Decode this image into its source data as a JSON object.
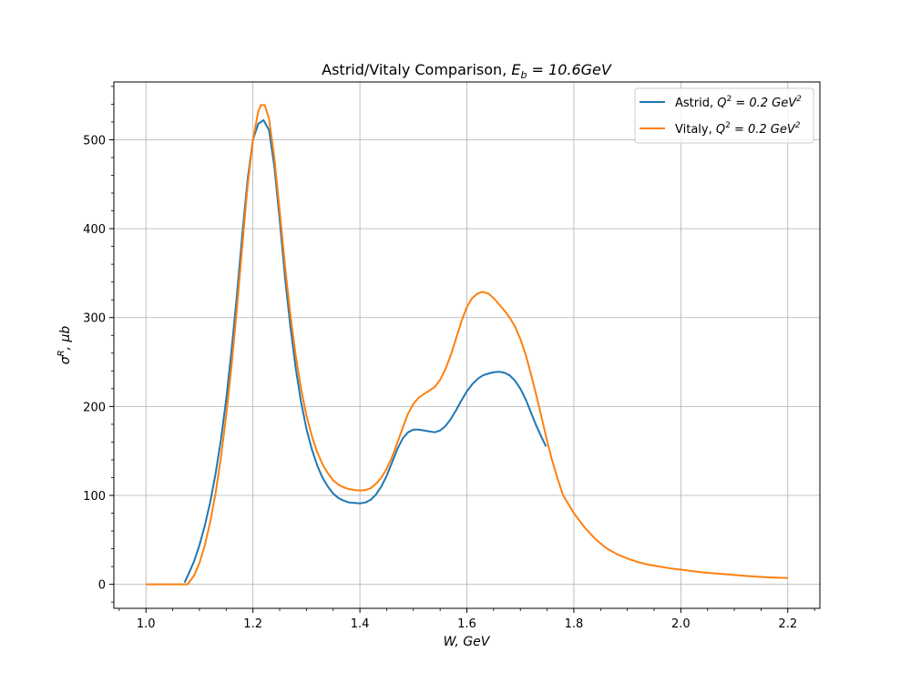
{
  "chart_data": {
    "type": "line",
    "title": "Astrid/Vitaly Comparison, E_b = 10.6GeV",
    "title_parts": {
      "prefix": "Astrid/Vitaly Comparison, ",
      "var": "E",
      "sub": "b",
      "suffix": " = 10.6GeV"
    },
    "xlabel": "W, GeV",
    "ylabel": "σ^R, μb",
    "ylabel_parts": {
      "base": "σ",
      "sup": "R",
      "rest": ", μb"
    },
    "xlim": [
      0.94,
      2.26
    ],
    "ylim": [
      -27,
      565
    ],
    "xticks": [
      1.0,
      1.2,
      1.4,
      1.6,
      1.8,
      2.0,
      2.2
    ],
    "xtick_labels": [
      "1.0",
      "1.2",
      "1.4",
      "1.6",
      "1.8",
      "2.0",
      "2.2"
    ],
    "yticks": [
      0,
      100,
      200,
      300,
      400,
      500
    ],
    "ytick_labels": [
      "0",
      "100",
      "200",
      "300",
      "400",
      "500"
    ],
    "grid": true,
    "legend_position": "top-right",
    "series": [
      {
        "name": "Astrid, Q^2 = 0.2 GeV^2",
        "legend_parts": {
          "prefix": "Astrid, ",
          "q": "Q",
          "qsup": "2",
          "mid": " = 0.2 GeV",
          "gsup": "2"
        },
        "color": "#1f77b4",
        "points": [
          [
            1.072,
            2
          ],
          [
            1.08,
            12
          ],
          [
            1.09,
            26
          ],
          [
            1.1,
            44
          ],
          [
            1.11,
            66
          ],
          [
            1.12,
            92
          ],
          [
            1.13,
            124
          ],
          [
            1.14,
            162
          ],
          [
            1.15,
            208
          ],
          [
            1.16,
            263
          ],
          [
            1.17,
            325
          ],
          [
            1.18,
            393
          ],
          [
            1.19,
            455
          ],
          [
            1.2,
            500
          ],
          [
            1.21,
            518
          ],
          [
            1.22,
            522
          ],
          [
            1.23,
            511
          ],
          [
            1.24,
            470
          ],
          [
            1.25,
            410
          ],
          [
            1.26,
            345
          ],
          [
            1.27,
            290
          ],
          [
            1.28,
            243
          ],
          [
            1.29,
            205
          ],
          [
            1.3,
            175
          ],
          [
            1.31,
            152
          ],
          [
            1.32,
            134
          ],
          [
            1.33,
            120
          ],
          [
            1.34,
            110
          ],
          [
            1.35,
            102
          ],
          [
            1.36,
            97
          ],
          [
            1.37,
            94
          ],
          [
            1.38,
            92
          ],
          [
            1.39,
            91.5
          ],
          [
            1.4,
            91
          ],
          [
            1.41,
            92
          ],
          [
            1.42,
            95
          ],
          [
            1.43,
            101
          ],
          [
            1.44,
            110
          ],
          [
            1.45,
            122
          ],
          [
            1.46,
            137
          ],
          [
            1.47,
            152
          ],
          [
            1.48,
            164
          ],
          [
            1.49,
            171
          ],
          [
            1.5,
            174
          ],
          [
            1.51,
            174
          ],
          [
            1.52,
            173
          ],
          [
            1.53,
            172
          ],
          [
            1.54,
            171
          ],
          [
            1.55,
            173
          ],
          [
            1.56,
            178
          ],
          [
            1.57,
            186
          ],
          [
            1.58,
            196
          ],
          [
            1.59,
            207
          ],
          [
            1.6,
            217
          ],
          [
            1.61,
            225
          ],
          [
            1.62,
            231
          ],
          [
            1.63,
            235
          ],
          [
            1.64,
            237
          ],
          [
            1.65,
            238.5
          ],
          [
            1.66,
            239
          ],
          [
            1.67,
            238
          ],
          [
            1.68,
            235
          ],
          [
            1.69,
            229
          ],
          [
            1.7,
            220
          ],
          [
            1.71,
            208
          ],
          [
            1.72,
            193
          ],
          [
            1.73,
            178
          ],
          [
            1.74,
            165
          ],
          [
            1.748,
            155
          ]
        ]
      },
      {
        "name": "Vitaly, Q^2 = 0.2 GeV^2",
        "legend_parts": {
          "prefix": "Vitaly, ",
          "q": "Q",
          "qsup": "2",
          "mid": " = 0.2 GeV",
          "gsup": "2"
        },
        "color": "#ff7f0e",
        "points": [
          [
            1.0,
            0
          ],
          [
            1.02,
            0
          ],
          [
            1.04,
            0
          ],
          [
            1.06,
            0
          ],
          [
            1.078,
            0
          ],
          [
            1.09,
            10
          ],
          [
            1.1,
            24
          ],
          [
            1.11,
            44
          ],
          [
            1.12,
            70
          ],
          [
            1.13,
            102
          ],
          [
            1.14,
            142
          ],
          [
            1.15,
            190
          ],
          [
            1.16,
            246
          ],
          [
            1.17,
            310
          ],
          [
            1.18,
            380
          ],
          [
            1.19,
            448
          ],
          [
            1.2,
            500
          ],
          [
            1.21,
            532
          ],
          [
            1.215,
            539
          ],
          [
            1.222,
            539
          ],
          [
            1.23,
            524
          ],
          [
            1.24,
            480
          ],
          [
            1.25,
            420
          ],
          [
            1.26,
            358
          ],
          [
            1.27,
            303
          ],
          [
            1.28,
            257
          ],
          [
            1.29,
            220
          ],
          [
            1.3,
            190
          ],
          [
            1.31,
            167
          ],
          [
            1.32,
            149
          ],
          [
            1.33,
            135
          ],
          [
            1.34,
            125
          ],
          [
            1.35,
            117
          ],
          [
            1.36,
            112
          ],
          [
            1.37,
            109
          ],
          [
            1.38,
            107
          ],
          [
            1.39,
            106
          ],
          [
            1.4,
            105.5
          ],
          [
            1.41,
            106
          ],
          [
            1.42,
            108
          ],
          [
            1.43,
            113
          ],
          [
            1.44,
            120
          ],
          [
            1.45,
            130
          ],
          [
            1.46,
            143
          ],
          [
            1.47,
            159
          ],
          [
            1.48,
            176
          ],
          [
            1.49,
            192
          ],
          [
            1.5,
            203
          ],
          [
            1.51,
            210
          ],
          [
            1.52,
            214
          ],
          [
            1.53,
            218
          ],
          [
            1.54,
            222
          ],
          [
            1.55,
            230
          ],
          [
            1.56,
            242
          ],
          [
            1.57,
            258
          ],
          [
            1.58,
            277
          ],
          [
            1.59,
            296
          ],
          [
            1.6,
            312
          ],
          [
            1.61,
            322
          ],
          [
            1.62,
            327
          ],
          [
            1.63,
            329
          ],
          [
            1.64,
            327
          ],
          [
            1.65,
            322
          ],
          [
            1.66,
            315
          ],
          [
            1.67,
            308
          ],
          [
            1.68,
            300
          ],
          [
            1.69,
            290
          ],
          [
            1.7,
            276
          ],
          [
            1.71,
            258
          ],
          [
            1.72,
            236
          ],
          [
            1.73,
            212
          ],
          [
            1.74,
            187
          ],
          [
            1.75,
            161
          ],
          [
            1.76,
            138
          ],
          [
            1.77,
            118
          ],
          [
            1.78,
            100
          ],
          [
            1.8,
            80
          ],
          [
            1.82,
            64
          ],
          [
            1.84,
            51
          ],
          [
            1.86,
            41
          ],
          [
            1.88,
            34
          ],
          [
            1.9,
            29
          ],
          [
            1.92,
            25
          ],
          [
            1.94,
            22
          ],
          [
            1.96,
            20
          ],
          [
            1.98,
            18
          ],
          [
            2.0,
            16.5
          ],
          [
            2.04,
            13.5
          ],
          [
            2.08,
            11.5
          ],
          [
            2.12,
            9.5
          ],
          [
            2.16,
            8
          ],
          [
            2.2,
            7
          ]
        ]
      }
    ]
  }
}
